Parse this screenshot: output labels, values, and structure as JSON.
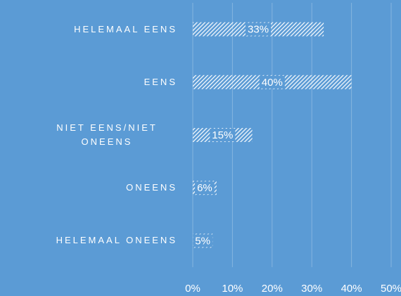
{
  "chart_data": {
    "type": "bar",
    "orientation": "horizontal",
    "categories": [
      "HELEMAAL EENS",
      "EENS",
      "NIET EENS/NIET ONEENS",
      "ONEENS",
      "HELEMAAL ONEENS"
    ],
    "values": [
      33,
      40,
      15,
      6,
      5
    ],
    "value_labels": [
      "33%",
      "40%",
      "15%",
      "6%",
      "5%"
    ],
    "color": "#ffffff",
    "background": "#5b9bd5",
    "xlim": [
      0,
      50
    ],
    "xticks": [
      {
        "value": 0,
        "label": "0%"
      },
      {
        "value": 10,
        "label": "10%"
      },
      {
        "value": 20,
        "label": "20%"
      },
      {
        "value": 30,
        "label": "30%"
      },
      {
        "value": 40,
        "label": "40%"
      },
      {
        "value": 50,
        "label": "50%"
      }
    ],
    "grid": true
  }
}
